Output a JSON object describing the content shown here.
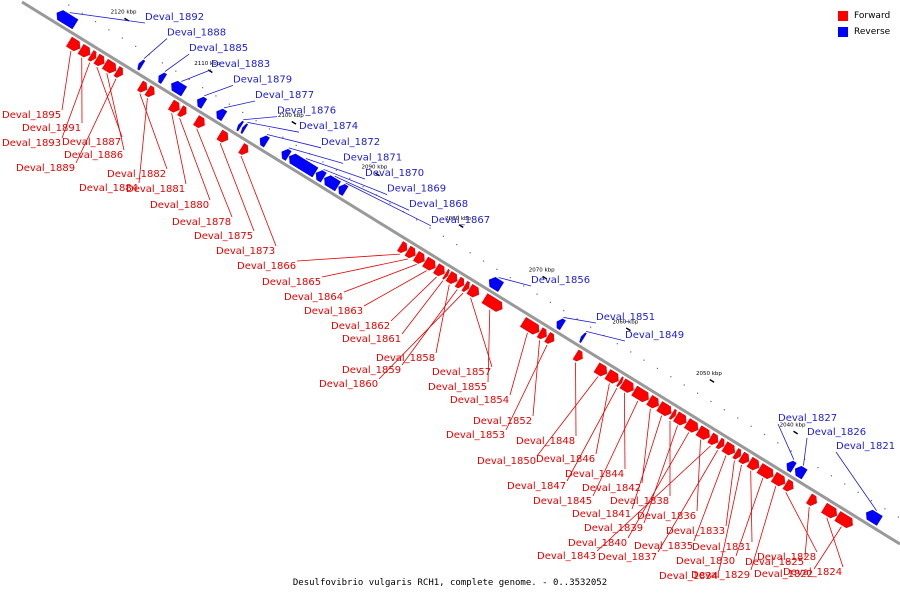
{
  "caption": "Desulfovibrio vulgaris RCH1, complete genome. - 0..3532052",
  "legend": [
    {
      "label": "Forward",
      "color": "#ff0000"
    },
    {
      "label": "Reverse",
      "color": "#0000ff"
    }
  ],
  "colors": {
    "forward": "#ff0000",
    "reverse": "#0000ff",
    "forward_label": "#e80000",
    "reverse_label": "#1c1cd8",
    "backbone": "#999999"
  },
  "scale_ticks": [
    {
      "label": "2120 kbp",
      "pos": 2120
    },
    {
      "label": "2110 kbp",
      "pos": 2110
    },
    {
      "label": "2100 kbp",
      "pos": 2100
    },
    {
      "label": "2090 kbp",
      "pos": 2090
    },
    {
      "label": "2080 kbp",
      "pos": 2080
    },
    {
      "label": "2070 kbp",
      "pos": 2070
    },
    {
      "label": "2060 kbp",
      "pos": 2060
    },
    {
      "label": "2050 kbp",
      "pos": 2050
    },
    {
      "label": "2040 kbp",
      "pos": 2040
    }
  ],
  "genes": [
    {
      "name": "Deval_1892",
      "strand": "reverse",
      "start": 2124.2,
      "end": 2126.4
    },
    {
      "name": "Deval_1888",
      "strand": "reverse",
      "start": 2116.2,
      "end": 2116.6
    },
    {
      "name": "Deval_1885",
      "strand": "reverse",
      "start": 2113.6,
      "end": 2114.2
    },
    {
      "name": "Deval_1883",
      "strand": "reverse",
      "start": 2111.2,
      "end": 2112.7
    },
    {
      "name": "Deval_1879",
      "strand": "reverse",
      "start": 2108.8,
      "end": 2109.6
    },
    {
      "name": "Deval_1877",
      "strand": "reverse",
      "start": 2106.4,
      "end": 2107.3
    },
    {
      "name": "Deval_1876",
      "strand": "reverse",
      "start": 2104.4,
      "end": 2104.7
    },
    {
      "name": "Deval_1874",
      "strand": "reverse",
      "start": 2103.9,
      "end": 2104.2
    },
    {
      "name": "Deval_1872",
      "strand": "reverse",
      "start": 2101.3,
      "end": 2102.1
    },
    {
      "name": "Deval_1871",
      "strand": "reverse",
      "start": 2098.7,
      "end": 2099.5
    },
    {
      "name": "Deval_1870",
      "strand": "reverse",
      "start": 2095.5,
      "end": 2098.6
    },
    {
      "name": "Deval_1869",
      "strand": "reverse",
      "start": 2094.5,
      "end": 2095.4
    },
    {
      "name": "Deval_1868",
      "strand": "reverse",
      "start": 2092.8,
      "end": 2094.4
    },
    {
      "name": "Deval_1867",
      "strand": "reverse",
      "start": 2091.9,
      "end": 2092.7
    },
    {
      "name": "Deval_1856",
      "strand": "reverse",
      "start": 2073.3,
      "end": 2074.7
    },
    {
      "name": "Deval_1851",
      "strand": "reverse",
      "start": 2065.9,
      "end": 2066.6
    },
    {
      "name": "Deval_1849",
      "strand": "reverse",
      "start": 2063.4,
      "end": 2063.7
    },
    {
      "name": "Deval_1827",
      "strand": "reverse",
      "start": 2038.3,
      "end": 2039.1
    },
    {
      "name": "Deval_1826",
      "strand": "reverse",
      "start": 2037.0,
      "end": 2038.1
    },
    {
      "name": "Deval_1821",
      "strand": "reverse",
      "start": 2028.0,
      "end": 2029.6
    },
    {
      "name": "Deval_1895",
      "strand": "forward",
      "start": 2122.5,
      "end": 2123.8
    },
    {
      "name": "Deval_1891",
      "strand": "forward",
      "start": 2121.3,
      "end": 2122.4
    },
    {
      "name": "Deval_1893",
      "strand": "forward",
      "start": 2120.6,
      "end": 2121.2
    },
    {
      "name": "Deval_1887",
      "strand": "forward",
      "start": 2119.6,
      "end": 2120.5
    },
    {
      "name": "Deval_1886",
      "strand": "forward",
      "start": 2118.2,
      "end": 2119.5
    },
    {
      "name": "Deval_1889",
      "strand": "forward",
      "start": 2117.4,
      "end": 2118.1
    },
    {
      "name": "Deval_1882",
      "strand": "forward",
      "start": 2114.5,
      "end": 2115.3
    },
    {
      "name": "Deval_1884",
      "strand": "forward",
      "start": 2113.6,
      "end": 2114.4
    },
    {
      "name": "Deval_1881",
      "strand": "forward",
      "start": 2110.6,
      "end": 2111.6
    },
    {
      "name": "Deval_1880",
      "strand": "forward",
      "start": 2109.8,
      "end": 2110.5
    },
    {
      "name": "Deval_1878",
      "strand": "forward",
      "start": 2107.6,
      "end": 2108.6
    },
    {
      "name": "Deval_1875",
      "strand": "forward",
      "start": 2104.8,
      "end": 2105.8
    },
    {
      "name": "Deval_1873",
      "strand": "forward",
      "start": 2102.4,
      "end": 2103.2
    },
    {
      "name": "Deval_1866",
      "strand": "forward",
      "start": 2083.4,
      "end": 2084.2
    },
    {
      "name": "Deval_1865",
      "strand": "forward",
      "start": 2082.4,
      "end": 2083.3
    },
    {
      "name": "Deval_1864",
      "strand": "forward",
      "start": 2081.3,
      "end": 2082.3
    },
    {
      "name": "Deval_1863",
      "strand": "forward",
      "start": 2080.0,
      "end": 2081.2
    },
    {
      "name": "Deval_1862",
      "strand": "forward",
      "start": 2078.9,
      "end": 2079.9
    },
    {
      "name": "Deval_1861",
      "strand": "forward",
      "start": 2078.5,
      "end": 2078.8
    },
    {
      "name": "Deval_1858",
      "strand": "forward",
      "start": 2077.4,
      "end": 2078.4
    },
    {
      "name": "Deval_1859",
      "strand": "forward",
      "start": 2076.6,
      "end": 2077.3
    },
    {
      "name": "Deval_1860",
      "strand": "forward",
      "start": 2076.0,
      "end": 2076.5
    },
    {
      "name": "Deval_1857",
      "strand": "forward",
      "start": 2074.8,
      "end": 2075.9
    },
    {
      "name": "Deval_1855",
      "strand": "forward",
      "start": 2072.0,
      "end": 2074.1
    },
    {
      "name": "Deval_1854",
      "strand": "forward",
      "start": 2067.6,
      "end": 2069.5
    },
    {
      "name": "Deval_1852",
      "strand": "forward",
      "start": 2066.7,
      "end": 2067.5
    },
    {
      "name": "Deval_1853",
      "strand": "forward",
      "start": 2065.8,
      "end": 2066.6
    },
    {
      "name": "Deval_1848",
      "strand": "forward",
      "start": 2062.4,
      "end": 2063.2
    },
    {
      "name": "Deval_1850",
      "strand": "forward",
      "start": 2059.5,
      "end": 2060.7
    },
    {
      "name": "Deval_1846",
      "strand": "forward",
      "start": 2058.1,
      "end": 2059.4
    },
    {
      "name": "Deval_1847",
      "strand": "forward",
      "start": 2057.7,
      "end": 2058.0
    },
    {
      "name": "Deval_1844",
      "strand": "forward",
      "start": 2056.3,
      "end": 2057.6
    },
    {
      "name": "Deval_1845",
      "strand": "forward",
      "start": 2054.5,
      "end": 2056.2
    },
    {
      "name": "Deval_1842",
      "strand": "forward",
      "start": 2053.3,
      "end": 2054.4
    },
    {
      "name": "Deval_1841",
      "strand": "forward",
      "start": 2051.8,
      "end": 2053.2
    },
    {
      "name": "Deval_1838",
      "strand": "forward",
      "start": 2051.3,
      "end": 2051.7
    },
    {
      "name": "Deval_1839",
      "strand": "forward",
      "start": 2050.0,
      "end": 2051.2
    },
    {
      "name": "Deval_1840",
      "strand": "forward",
      "start": 2048.6,
      "end": 2049.9
    },
    {
      "name": "Deval_1836",
      "strand": "forward",
      "start": 2047.2,
      "end": 2048.5
    },
    {
      "name": "Deval_1843",
      "strand": "forward",
      "start": 2046.2,
      "end": 2047.1
    },
    {
      "name": "Deval_1837",
      "strand": "forward",
      "start": 2045.5,
      "end": 2046.1
    },
    {
      "name": "Deval_1835",
      "strand": "forward",
      "start": 2044.2,
      "end": 2045.4
    },
    {
      "name": "Deval_1833",
      "strand": "forward",
      "start": 2043.5,
      "end": 2044.1
    },
    {
      "name": "Deval_1834",
      "strand": "forward",
      "start": 2042.5,
      "end": 2043.4
    },
    {
      "name": "Deval_1831",
      "strand": "forward",
      "start": 2041.3,
      "end": 2042.4
    },
    {
      "name": "Deval_1830",
      "strand": "forward",
      "start": 2039.6,
      "end": 2041.2
    },
    {
      "name": "Deval_1829",
      "strand": "forward",
      "start": 2038.2,
      "end": 2039.5
    },
    {
      "name": "Deval_1828",
      "strand": "forward",
      "start": 2037.2,
      "end": 2038.1
    },
    {
      "name": "Deval_1825",
      "strand": "forward",
      "start": 2034.4,
      "end": 2035.3
    },
    {
      "name": "Deval_1824",
      "strand": "forward",
      "start": 2032.0,
      "end": 2033.5
    },
    {
      "name": "Deval_1822",
      "strand": "forward",
      "start": 2030.1,
      "end": 2031.9
    }
  ]
}
